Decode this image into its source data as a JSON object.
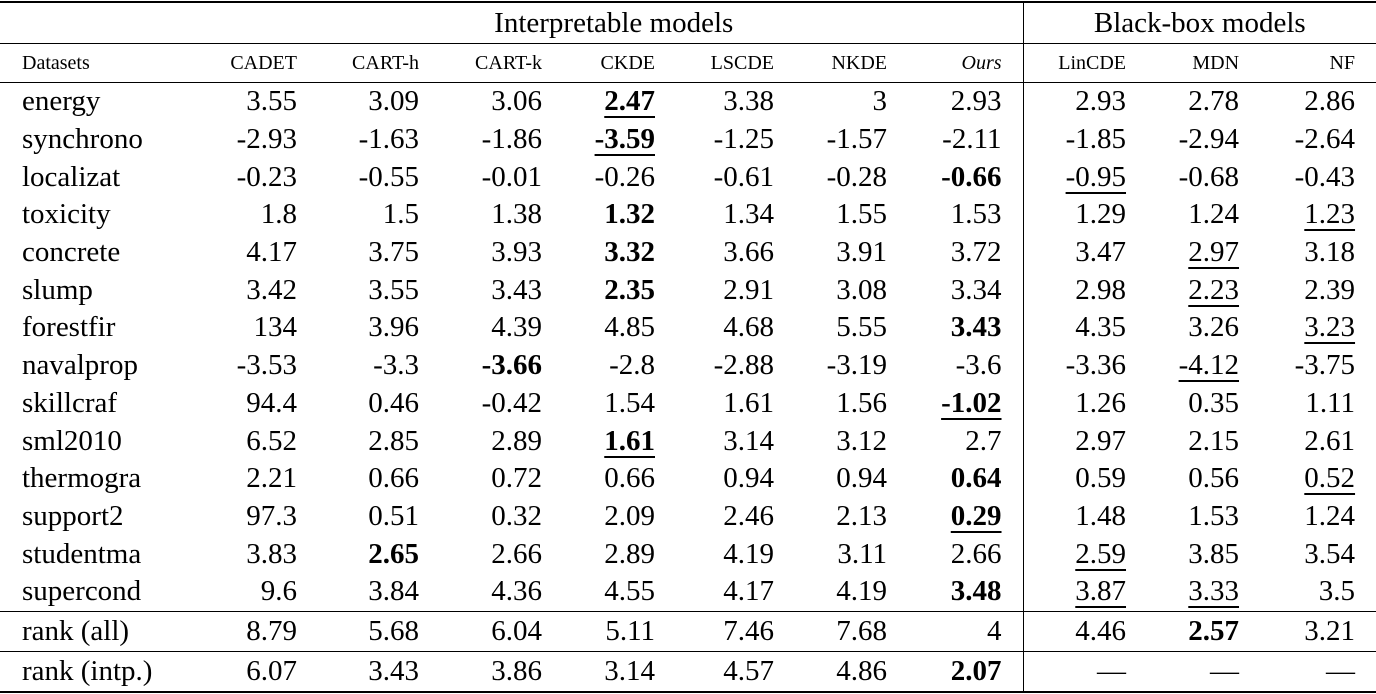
{
  "header": {
    "groups": [
      "Interpretable models",
      "Black-box models"
    ],
    "columns": [
      "Datasets",
      "CADET",
      "CART-h",
      "CART-k",
      "CKDE",
      "LSCDE",
      "NKDE",
      "Ours",
      "LinCDE",
      "MDN",
      "NF"
    ]
  },
  "rows": [
    [
      "energy",
      "3.55",
      "3.09",
      "3.06",
      "2.47",
      "3.38",
      "3",
      "2.93",
      "2.93",
      "2.78",
      "2.86"
    ],
    [
      "synchrono",
      "-2.93",
      "-1.63",
      "-1.86",
      "-3.59",
      "-1.25",
      "-1.57",
      "-2.11",
      "-1.85",
      "-2.94",
      "-2.64"
    ],
    [
      "localizat",
      "-0.23",
      "-0.55",
      "-0.01",
      "-0.26",
      "-0.61",
      "-0.28",
      "-0.66",
      "-0.95",
      "-0.68",
      "-0.43"
    ],
    [
      "toxicity",
      "1.8",
      "1.5",
      "1.38",
      "1.32",
      "1.34",
      "1.55",
      "1.53",
      "1.29",
      "1.24",
      "1.23"
    ],
    [
      "concrete",
      "4.17",
      "3.75",
      "3.93",
      "3.32",
      "3.66",
      "3.91",
      "3.72",
      "3.47",
      "2.97",
      "3.18"
    ],
    [
      "slump",
      "3.42",
      "3.55",
      "3.43",
      "2.35",
      "2.91",
      "3.08",
      "3.34",
      "2.98",
      "2.23",
      "2.39"
    ],
    [
      "forestfir",
      "134",
      "3.96",
      "4.39",
      "4.85",
      "4.68",
      "5.55",
      "3.43",
      "4.35",
      "3.26",
      "3.23"
    ],
    [
      "navalprop",
      "-3.53",
      "-3.3",
      "-3.66",
      "-2.8",
      "-2.88",
      "-3.19",
      "-3.6",
      "-3.36",
      "-4.12",
      "-3.75"
    ],
    [
      "skillcraf",
      "94.4",
      "0.46",
      "-0.42",
      "1.54",
      "1.61",
      "1.56",
      "-1.02",
      "1.26",
      "0.35",
      "1.11"
    ],
    [
      "sml2010",
      "6.52",
      "2.85",
      "2.89",
      "1.61",
      "3.14",
      "3.12",
      "2.7",
      "2.97",
      "2.15",
      "2.61"
    ],
    [
      "thermogra",
      "2.21",
      "0.66",
      "0.72",
      "0.66",
      "0.94",
      "0.94",
      "0.64",
      "0.59",
      "0.56",
      "0.52"
    ],
    [
      "support2",
      "97.3",
      "0.51",
      "0.32",
      "2.09",
      "2.46",
      "2.13",
      "0.29",
      "1.48",
      "1.53",
      "1.24"
    ],
    [
      "studentma",
      "3.83",
      "2.65",
      "2.66",
      "2.89",
      "4.19",
      "3.11",
      "2.66",
      "2.59",
      "3.85",
      "3.54"
    ],
    [
      "supercond",
      "9.6",
      "3.84",
      "4.36",
      "4.55",
      "4.17",
      "4.19",
      "3.48",
      "3.87",
      "3.33",
      "3.5"
    ]
  ],
  "summary_rows": [
    [
      "rank (all)",
      "8.79",
      "5.68",
      "6.04",
      "5.11",
      "7.46",
      "7.68",
      "4",
      "4.46",
      "2.57",
      "3.21"
    ],
    [
      "rank (intp.)",
      "6.07",
      "3.43",
      "3.86",
      "3.14",
      "4.57",
      "4.86",
      "2.07",
      "—",
      "—",
      "—"
    ]
  ]
}
